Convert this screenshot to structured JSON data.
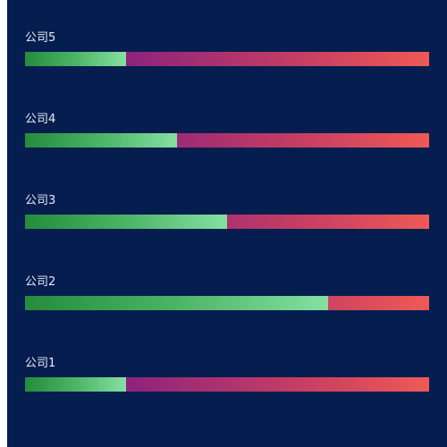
{
  "chart_data": {
    "type": "bar",
    "orientation": "horizontal",
    "stacked": true,
    "categories": [
      "公司5",
      "公司4",
      "公司3",
      "公司2",
      "公司1"
    ],
    "series": [
      {
        "values": [
          0.25,
          0.375,
          0.5,
          0.75,
          0.25
        ]
      },
      {
        "values": [
          0.75,
          0.625,
          0.5,
          0.25,
          0.75
        ]
      }
    ],
    "xlim": [
      0,
      1
    ],
    "grid": false,
    "legend": "none",
    "colors": {
      "background": "#061d4f",
      "label": "#e6edf7",
      "fill_start": "#248c3c",
      "fill_end": "#84e0a2",
      "remainder_start": "#6b0f90",
      "remainder_end": "#ee5a55"
    }
  }
}
